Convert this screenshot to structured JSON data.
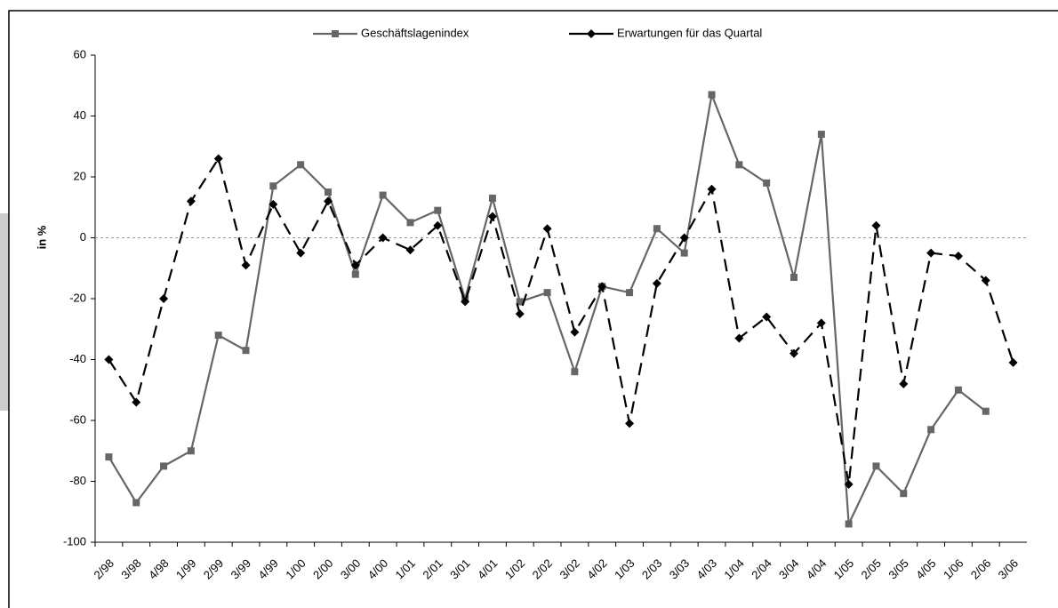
{
  "chart_data": {
    "type": "line",
    "ylabel": "in %",
    "categories": [
      "2/98",
      "3/98",
      "4/98",
      "1/99",
      "2/99",
      "3/99",
      "4/99",
      "1/00",
      "2/00",
      "3/00",
      "4/00",
      "1/01",
      "2/01",
      "3/01",
      "4/01",
      "1/02",
      "2/02",
      "3/02",
      "4/02",
      "1/03",
      "2/03",
      "3/03",
      "4/03",
      "1/04",
      "2/04",
      "3/04",
      "4/04",
      "1/05",
      "2/05",
      "3/05",
      "4/05",
      "1/06",
      "2/06",
      "3/06"
    ],
    "series": [
      {
        "name": "Geschäftslagenindex",
        "color": "#666666",
        "marker": "square",
        "dashed": false,
        "values": [
          -72,
          -87,
          -75,
          -70,
          -32,
          -37,
          17,
          24,
          15,
          -12,
          14,
          5,
          9,
          -20,
          13,
          -21,
          -18,
          -44,
          -16,
          -18,
          3,
          -5,
          47,
          24,
          18,
          -13,
          34,
          -94,
          -75,
          -84,
          -63,
          -50,
          -57,
          null
        ]
      },
      {
        "name": "Erwartungen für das Quartal",
        "color": "#000000",
        "marker": "diamond",
        "dashed": true,
        "values": [
          -40,
          -54,
          -20,
          12,
          26,
          -9,
          11,
          -5,
          12,
          -9,
          0,
          -4,
          4,
          -21,
          7,
          -25,
          3,
          -31,
          -16,
          -61,
          -15,
          0,
          16,
          -33,
          -26,
          -38,
          -28,
          -81,
          4,
          -48,
          -5,
          -6,
          -14,
          -41
        ]
      }
    ],
    "ylim": [
      -100,
      60
    ],
    "yticks": [
      -100,
      -80,
      -60,
      -40,
      -20,
      0,
      20,
      40,
      60
    ],
    "legend": "top"
  }
}
